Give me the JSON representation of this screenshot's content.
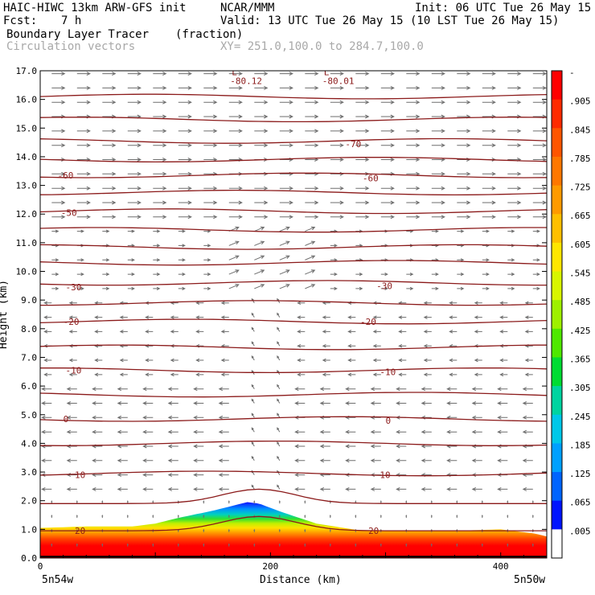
{
  "header": {
    "model": "HAIC-HIWC 13km ARW-GFS init",
    "org": "NCAR/MMM",
    "init": "Init: 06 UTC Tue 26 May 15",
    "fcst_label": "Fcst:",
    "fcst_value": "7 h",
    "valid": "Valid: 13 UTC Tue 26 May 15 (10 LST Tue 26 May 15)",
    "field": "Boundary Layer Tracer",
    "units": "(fraction)",
    "vectors": "Circulation vectors",
    "xy": "XY= 251.0,100.0 to 284.7,100.0"
  },
  "axes": {
    "ylabel": "Height (km)",
    "xlabel": "Distance (km)",
    "left_endpoint": "5n54w",
    "right_endpoint": "5n50w"
  },
  "colors": {
    "contour": "#8b1a1a",
    "vector": "#6e6e6e",
    "terrain": "#000000"
  },
  "chart_data": {
    "type": "heatmap",
    "title": "Boundary Layer Tracer",
    "xlabel": "Distance (km)",
    "ylabel": "Height (km)",
    "xlim": [
      0,
      440
    ],
    "ylim": [
      0,
      17
    ],
    "xticks": [
      0,
      200,
      400
    ],
    "yticks": [
      "0.0",
      "1.0",
      "2.0",
      "3.0",
      "4.0",
      "5.0",
      "6.0",
      "7.0",
      "8.0",
      "9.0",
      "10.0",
      "11.0",
      "12.0",
      "13.0",
      "14.0",
      "15.0",
      "16.0",
      "17.0"
    ],
    "colorbar": {
      "labels": [
        "-",
        ".905",
        ".845",
        ".785",
        ".725",
        ".665",
        ".605",
        ".545",
        ".485",
        ".425",
        ".365",
        ".305",
        ".245",
        ".185",
        ".125",
        ".065",
        ".005"
      ],
      "colors": [
        "#ff0000",
        "#ff2a00",
        "#ff5500",
        "#ff7700",
        "#ff9a00",
        "#ffbf00",
        "#ffe600",
        "#d8f500",
        "#9ef000",
        "#4fe800",
        "#00dc32",
        "#00d4a0",
        "#00c8e8",
        "#00a0ff",
        "#0064ff",
        "#0014ff",
        "#ffffff"
      ]
    },
    "tracer_top_km": {
      "x": [
        0,
        40,
        80,
        100,
        120,
        150,
        180,
        190,
        210,
        240,
        280,
        320,
        360,
        400,
        430,
        440
      ],
      "y": [
        1.05,
        1.1,
        1.1,
        1.2,
        1.4,
        1.65,
        1.95,
        1.9,
        1.6,
        1.2,
        0.95,
        0.95,
        0.95,
        1.0,
        0.85,
        0.75
      ]
    },
    "terrain_km": {
      "x": [
        0,
        440
      ],
      "y": [
        0.05,
        0.05
      ]
    },
    "temperature_contours": [
      {
        "label": "-80.12",
        "x": 165,
        "y": 16.65,
        "kind": "low",
        "mark": "L"
      },
      {
        "label": "-80.01",
        "x": 245,
        "y": 16.65,
        "kind": "low",
        "mark": "L"
      },
      {
        "label": "-70",
        "x": 265,
        "y": 14.45
      },
      {
        "label": "-60",
        "x": 15,
        "y": 13.35
      },
      {
        "label": "-60",
        "x": 280,
        "y": 13.25
      },
      {
        "label": "-50",
        "x": 18,
        "y": 12.05
      },
      {
        "label": "-30",
        "x": 22,
        "y": 9.45
      },
      {
        "label": "-30",
        "x": 292,
        "y": 9.5
      },
      {
        "label": "-20",
        "x": 20,
        "y": 8.25
      },
      {
        "label": "-20",
        "x": 278,
        "y": 8.25
      },
      {
        "label": "-10",
        "x": 22,
        "y": 6.55
      },
      {
        "label": "-10",
        "x": 295,
        "y": 6.5
      },
      {
        "label": "0",
        "x": 20,
        "y": 4.85
      },
      {
        "label": "0",
        "x": 300,
        "y": 4.8
      },
      {
        "label": "10",
        "x": 30,
        "y": 2.9
      },
      {
        "label": "10",
        "x": 295,
        "y": 2.9
      },
      {
        "label": "20",
        "x": 30,
        "y": 0.95
      },
      {
        "label": "20",
        "x": 285,
        "y": 0.95
      }
    ],
    "contour_levels_km": [
      16.1,
      15.3,
      14.55,
      13.9,
      13.35,
      12.75,
      12.1,
      11.45,
      10.85,
      10.3,
      9.6,
      8.9,
      8.25,
      7.35,
      6.55,
      5.7,
      4.85,
      4.0,
      2.95,
      1.9,
      0.95
    ],
    "legend": "right colorbar"
  }
}
